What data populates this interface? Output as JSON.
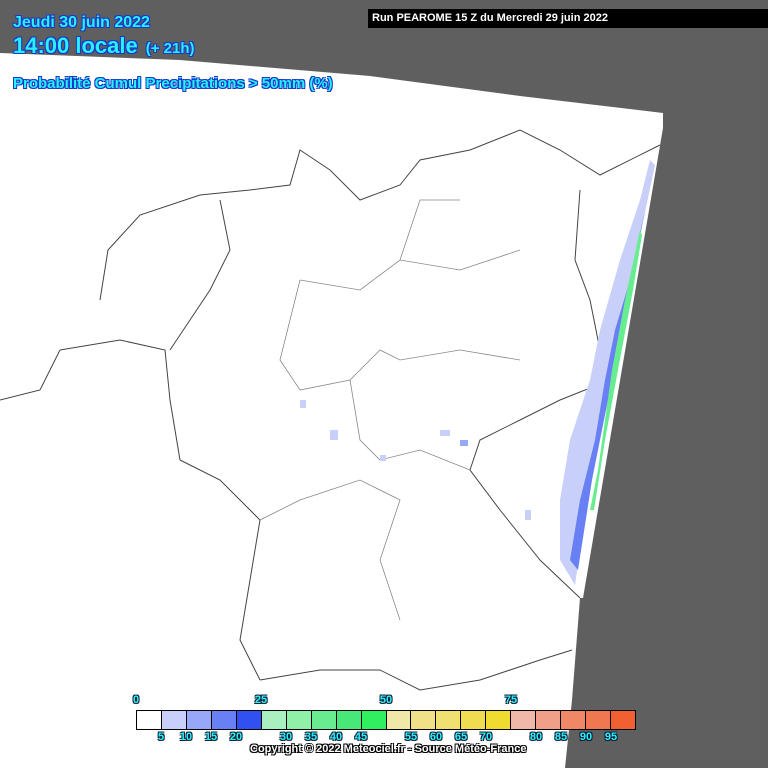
{
  "header": {
    "date": "Jeudi 30 juin 2022",
    "time": "14:00 locale",
    "lead": "(+ 21h)",
    "parameter": "Probabilité Cumul Precipitations > 50mm (%)",
    "run": "Run PEAROME 15 Z du Mercredi 29 juin 2022"
  },
  "colors": {
    "background_outside_domain": "#5f5f5f",
    "domain": "#ffffff",
    "title_text": "#28f0ff"
  },
  "legend": {
    "unit": "%",
    "major_labels": [
      "0",
      "25",
      "50",
      "75"
    ],
    "minor_labels": [
      "5",
      "10",
      "15",
      "20",
      "30",
      "35",
      "40",
      "45",
      "55",
      "60",
      "65",
      "70",
      "80",
      "85",
      "90",
      "95"
    ],
    "colors": [
      "#ffffff",
      "#c8d0fa",
      "#98a8f8",
      "#6880f4",
      "#3050f0",
      "#a8f0c0",
      "#90f0a8",
      "#68ec90",
      "#48e878",
      "#30f060",
      "#f0e8a8",
      "#f0e088",
      "#f0e070",
      "#f0dc50",
      "#f0dc30",
      "#f0b8a8",
      "#f0a088",
      "#f08868",
      "#f07850",
      "#f06030"
    ]
  },
  "copyright": "Copyright © 2022 Meteociel.fr - Source Météo-France"
}
